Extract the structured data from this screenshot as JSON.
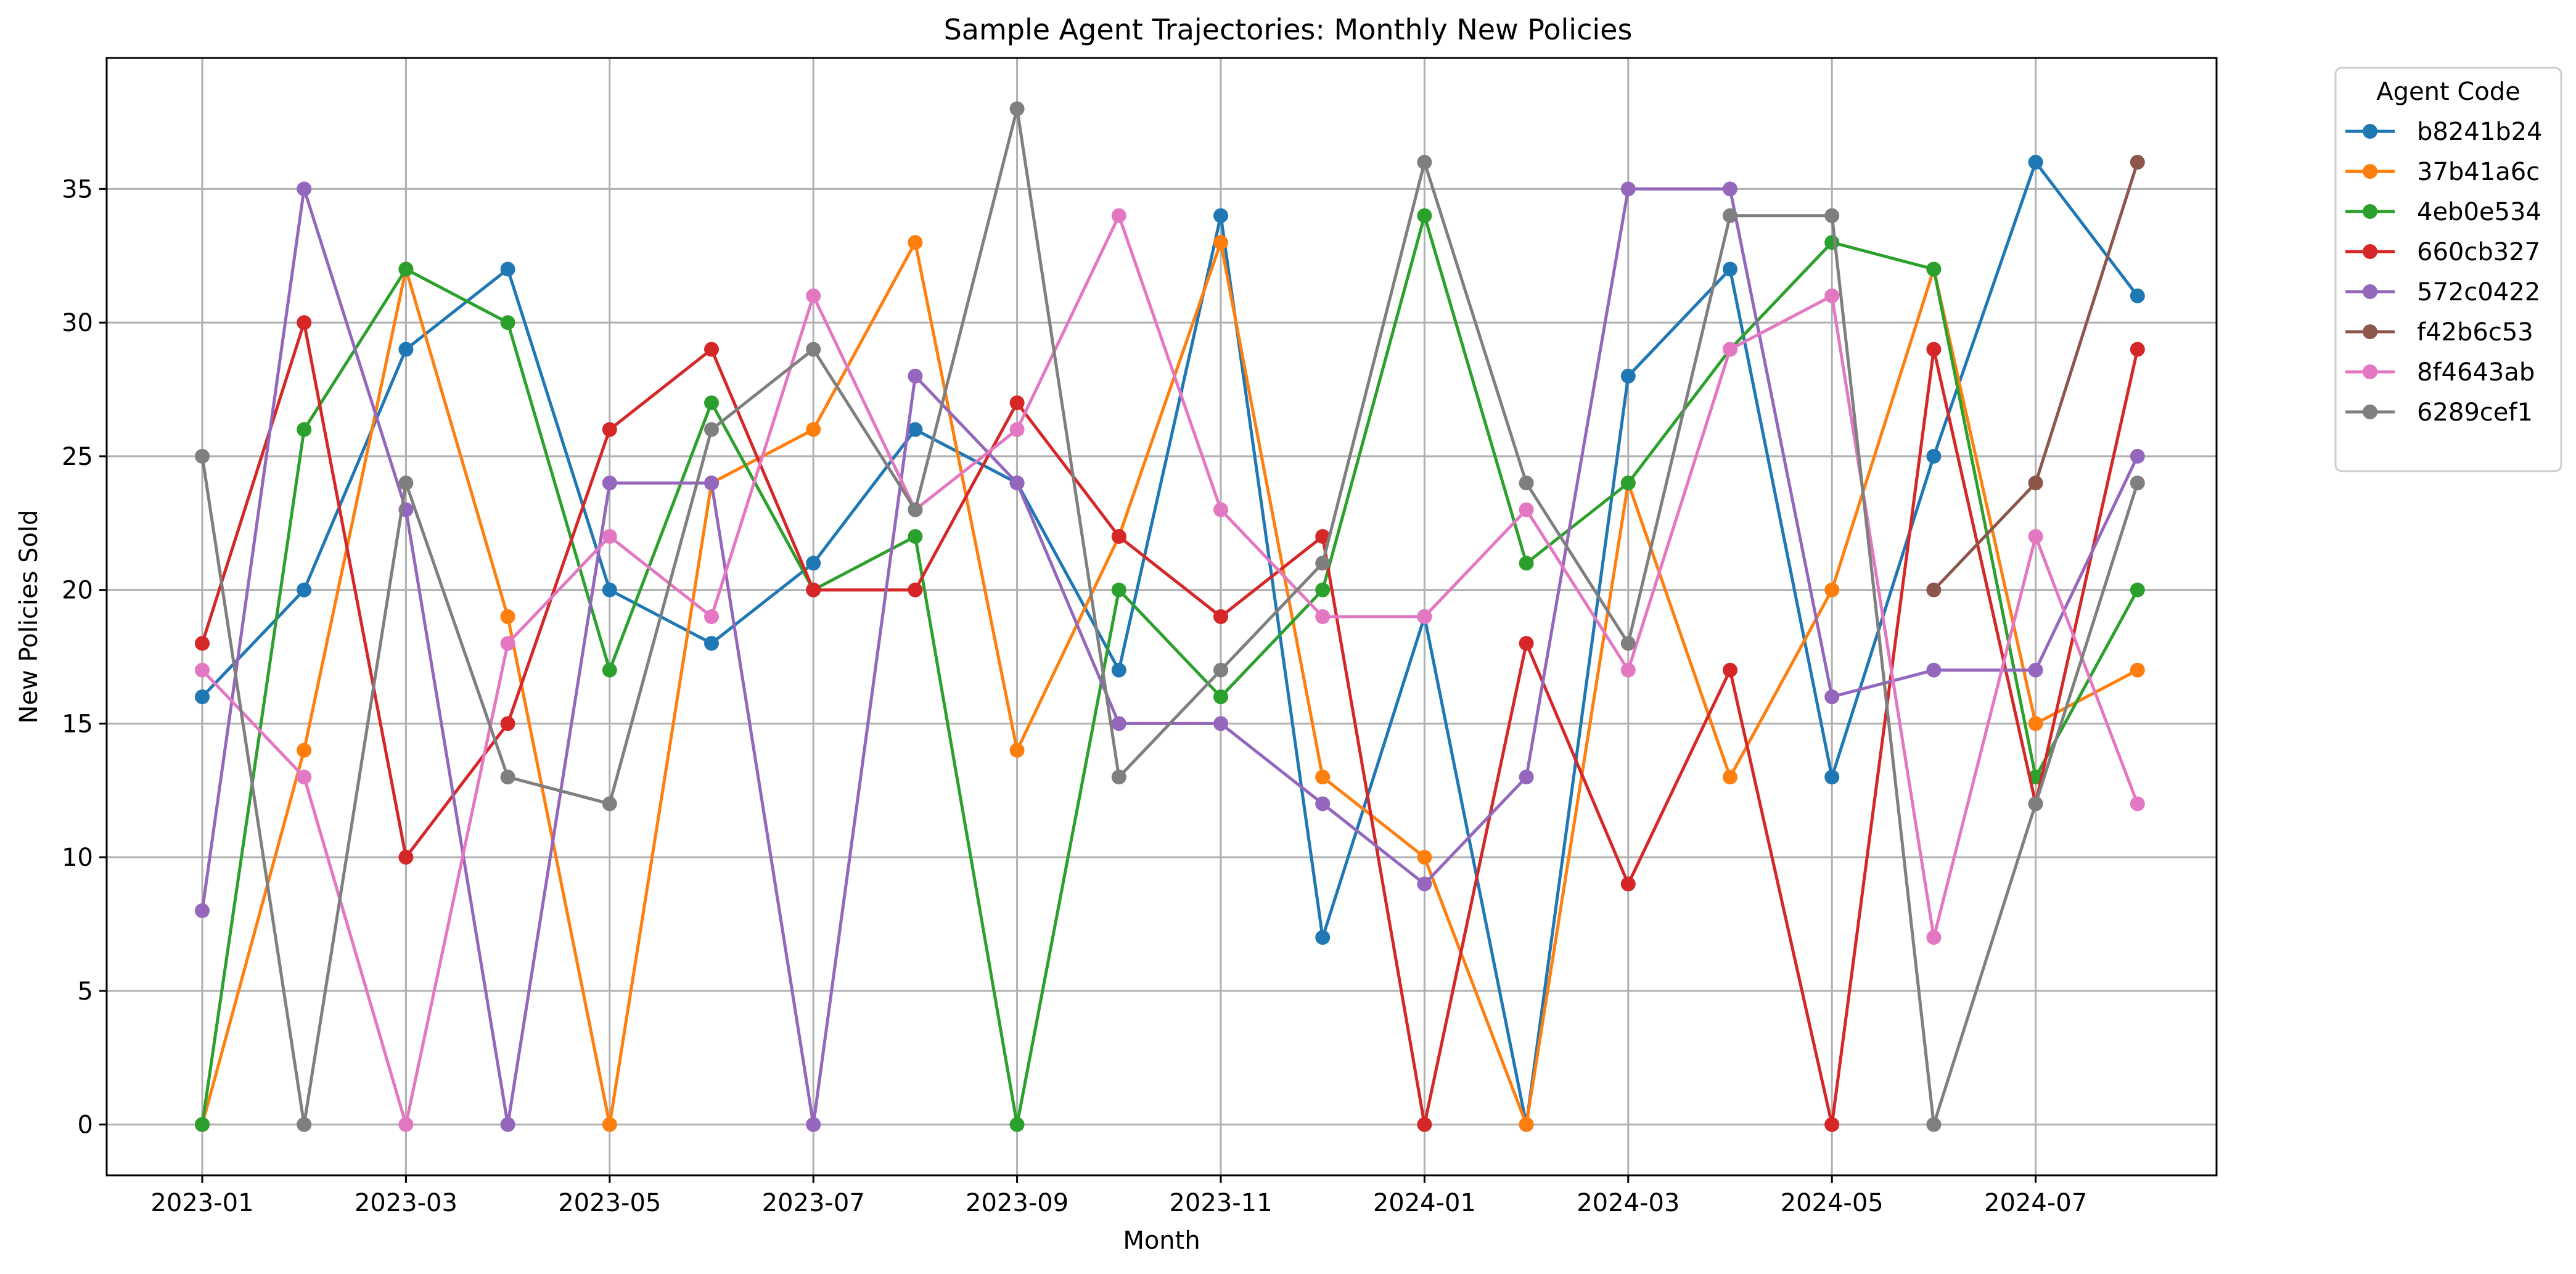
{
  "chart_data": {
    "type": "line",
    "title": "Sample Agent Trajectories: Monthly New Policies",
    "xlabel": "Month",
    "ylabel": "New Policies Sold",
    "grid": true,
    "legend": {
      "title": "Agent Code",
      "placement": "outside-top-right"
    },
    "x": [
      "2023-01",
      "2023-02",
      "2023-03",
      "2023-04",
      "2023-05",
      "2023-06",
      "2023-07",
      "2023-08",
      "2023-09",
      "2023-10",
      "2023-11",
      "2023-12",
      "2024-01",
      "2024-02",
      "2024-03",
      "2024-04",
      "2024-05",
      "2024-06",
      "2024-07",
      "2024-08"
    ],
    "x_ticks": [
      "2023-01",
      "2023-03",
      "2023-05",
      "2023-07",
      "2023-09",
      "2023-11",
      "2024-01",
      "2024-03",
      "2024-05",
      "2024-07"
    ],
    "y_ticks": [
      0,
      5,
      10,
      15,
      20,
      25,
      30,
      35
    ],
    "ylim": [
      -1.9,
      39.9
    ],
    "series": [
      {
        "name": "b8241b24",
        "color": "#1f77b4",
        "values": [
          16,
          20,
          29,
          32,
          20,
          18,
          21,
          26,
          24,
          17,
          34,
          7,
          19,
          0,
          28,
          32,
          13,
          25,
          36,
          31
        ]
      },
      {
        "name": "37b41a6c",
        "color": "#ff7f0e",
        "values": [
          0,
          14,
          32,
          19,
          0,
          24,
          26,
          33,
          14,
          22,
          33,
          13,
          10,
          0,
          24,
          13,
          20,
          32,
          15,
          17
        ]
      },
      {
        "name": "4eb0e534",
        "color": "#2ca02c",
        "values": [
          0,
          26,
          32,
          30,
          17,
          27,
          20,
          22,
          0,
          20,
          16,
          20,
          34,
          21,
          24,
          29,
          33,
          32,
          13,
          20
        ]
      },
      {
        "name": "660cb327",
        "color": "#d62728",
        "values": [
          18,
          30,
          10,
          15,
          26,
          29,
          20,
          20,
          27,
          22,
          19,
          22,
          0,
          18,
          9,
          17,
          0,
          29,
          12,
          29
        ]
      },
      {
        "name": "572c0422",
        "color": "#9467bd",
        "values": [
          8,
          35,
          23,
          0,
          24,
          24,
          0,
          28,
          24,
          15,
          15,
          12,
          9,
          13,
          35,
          35,
          16,
          17,
          17,
          25
        ]
      },
      {
        "name": "f42b6c53",
        "color": "#8c564b",
        "values": [
          null,
          null,
          null,
          null,
          null,
          null,
          null,
          null,
          null,
          null,
          null,
          null,
          null,
          null,
          null,
          null,
          null,
          20,
          24,
          36
        ]
      },
      {
        "name": "8f4643ab",
        "color": "#e377c2",
        "values": [
          17,
          13,
          0,
          18,
          22,
          19,
          31,
          23,
          26,
          34,
          23,
          19,
          19,
          23,
          17,
          29,
          31,
          7,
          22,
          12
        ]
      },
      {
        "name": "6289cef1",
        "color": "#7f7f7f",
        "values": [
          25,
          0,
          24,
          13,
          12,
          26,
          29,
          23,
          38,
          13,
          17,
          21,
          36,
          24,
          18,
          34,
          34,
          0,
          12,
          24
        ]
      }
    ]
  }
}
